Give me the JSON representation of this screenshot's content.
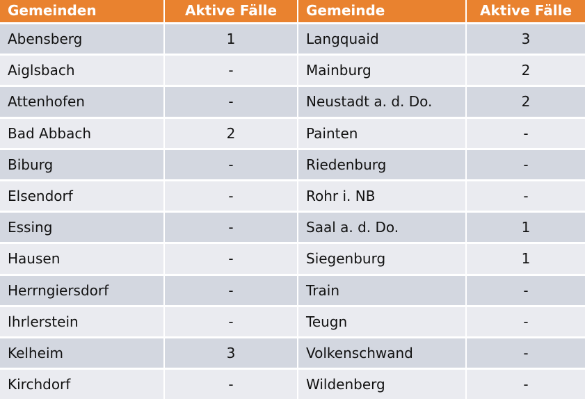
{
  "colors": {
    "header": "#E9822F",
    "row_dark": "#D3D7E0",
    "row_light": "#EAEBF0"
  },
  "headers": [
    "Gemeinden",
    "Aktive Fälle",
    "Gemeinde",
    "Aktive Fälle"
  ],
  "rows": [
    [
      "Abensberg",
      "1",
      "Langquaid",
      "3"
    ],
    [
      "Aiglsbach",
      "-",
      "Mainburg",
      "2"
    ],
    [
      "Attenhofen",
      "-",
      "Neustadt a. d. Do.",
      "2"
    ],
    [
      "Bad Abbach",
      "2",
      "Painten",
      "-"
    ],
    [
      "Biburg",
      "-",
      "Riedenburg",
      "-"
    ],
    [
      "Elsendorf",
      "-",
      "Rohr i. NB",
      "-"
    ],
    [
      "Essing",
      "-",
      "Saal a. d. Do.",
      "1"
    ],
    [
      "Hausen",
      "-",
      "Siegenburg",
      "1"
    ],
    [
      "Herrngiersdorf",
      "-",
      "Train",
      "-"
    ],
    [
      "Ihrlerstein",
      "-",
      "Teugn",
      "-"
    ],
    [
      "Kelheim",
      "3",
      "Volkenschwand",
      "-"
    ],
    [
      "Kirchdorf",
      "-",
      "Wildenberg",
      "-"
    ]
  ]
}
